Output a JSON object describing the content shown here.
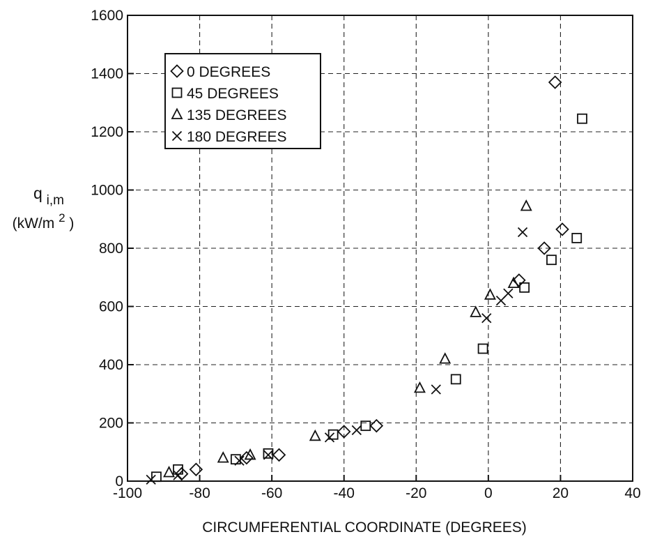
{
  "chart_data": {
    "type": "scatter",
    "title": "",
    "xlabel": "CIRCUMFERENTIAL COORDINATE (DEGREES)",
    "ylabel_line1_main": "q",
    "ylabel_line1_sub": "i,m",
    "ylabel_line2_pre": "(kW/m",
    "ylabel_line2_sup": "2",
    "ylabel_line2_post": ")",
    "xlim": [
      -100,
      40
    ],
    "ylim": [
      0,
      1600
    ],
    "xticks": [
      -100,
      -80,
      -60,
      -40,
      -20,
      0,
      20,
      40
    ],
    "yticks": [
      0,
      200,
      400,
      600,
      800,
      1000,
      1200,
      1400,
      1600
    ],
    "grid": true,
    "legend_position": "upper-left",
    "series": [
      {
        "name": "0 DEGREES",
        "marker": "diamond",
        "points": [
          [
            -85,
            25
          ],
          [
            -81,
            40
          ],
          [
            -67,
            80
          ],
          [
            -58,
            90
          ],
          [
            -40,
            170
          ],
          [
            -31,
            190
          ],
          [
            8.5,
            690
          ],
          [
            15.5,
            800
          ],
          [
            18.5,
            1370
          ],
          [
            20.5,
            865
          ]
        ]
      },
      {
        "name": "45 DEGREES",
        "marker": "square",
        "points": [
          [
            -92,
            15
          ],
          [
            -86,
            40
          ],
          [
            -70,
            75
          ],
          [
            -61,
            95
          ],
          [
            -43,
            160
          ],
          [
            -34,
            190
          ],
          [
            -9,
            350
          ],
          [
            -1.5,
            455
          ],
          [
            10,
            665
          ],
          [
            17.5,
            760
          ],
          [
            24.5,
            835
          ],
          [
            26,
            1245
          ]
        ]
      },
      {
        "name": "135 DEGREES",
        "marker": "triangle",
        "points": [
          [
            -88.5,
            30
          ],
          [
            -73.5,
            80
          ],
          [
            -66,
            90
          ],
          [
            -48,
            155
          ],
          [
            -19,
            320
          ],
          [
            -12,
            420
          ],
          [
            -3.5,
            580
          ],
          [
            0.5,
            640
          ],
          [
            7,
            680
          ],
          [
            10.5,
            945
          ]
        ]
      },
      {
        "name": "180 DEGREES",
        "marker": "x",
        "points": [
          [
            -93.5,
            5
          ],
          [
            -86,
            20
          ],
          [
            -69,
            70
          ],
          [
            -61,
            90
          ],
          [
            -44,
            150
          ],
          [
            -36.5,
            175
          ],
          [
            -14.5,
            315
          ],
          [
            -0.5,
            560
          ],
          [
            3.5,
            620
          ],
          [
            5.5,
            645
          ],
          [
            9.5,
            855
          ]
        ]
      }
    ]
  }
}
